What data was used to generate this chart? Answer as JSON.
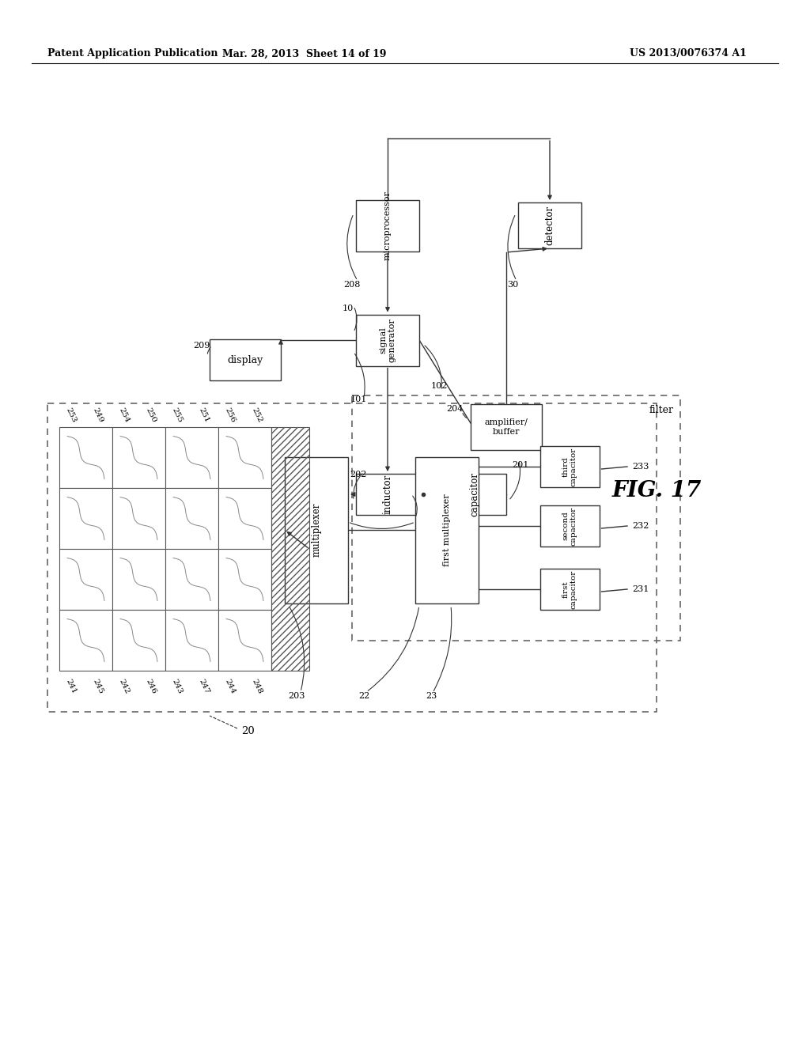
{
  "bg_color": "#ffffff",
  "header_left": "Patent Application Publication",
  "header_mid": "Mar. 28, 2013  Sheet 14 of 19",
  "header_right": "US 2013/0076374 A1",
  "line_color": "#333333",
  "box_edge": "#333333",
  "dash_color": "#555555"
}
